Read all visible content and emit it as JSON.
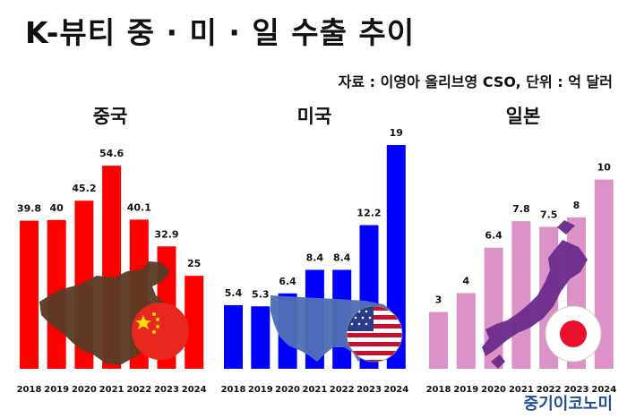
{
  "header": {
    "title": "K-뷰티 중 · 미 · 일 수출 추이",
    "source": "자료 : 이영아 올리브영 CSO, 단위 : 억 달러"
  },
  "brand": "중기이코노미",
  "colors": {
    "china_bar": "#ff0000",
    "usa_bar": "#0000ff",
    "japan_bar": "#dc92c6",
    "china_map": "#5b3b27",
    "usa_map": "#4e6fb5",
    "japan_map": "#6b2d8c"
  },
  "chart_data": [
    {
      "type": "bar",
      "title": "중국",
      "categories": [
        "2018",
        "2019",
        "2020",
        "2021",
        "2022",
        "2023",
        "2024"
      ],
      "values": [
        39.8,
        40,
        45.2,
        54.6,
        40.1,
        32.9,
        25
      ],
      "ylim": [
        0,
        58
      ],
      "color": "#ff0000",
      "icons": [
        "china-map-icon",
        "china-flag-icon"
      ]
    },
    {
      "type": "bar",
      "title": "미국",
      "categories": [
        "2018",
        "2019",
        "2020",
        "2021",
        "2022",
        "2023",
        "2024"
      ],
      "values": [
        5.4,
        5.3,
        6.4,
        8.4,
        8.4,
        12.2,
        19
      ],
      "ylim": [
        0,
        19
      ],
      "color": "#0000ff",
      "icons": [
        "usa-map-icon",
        "usa-flag-icon"
      ]
    },
    {
      "type": "bar",
      "title": "일본",
      "categories": [
        "2018",
        "2019",
        "2020",
        "2021",
        "2022",
        "2023",
        "2024"
      ],
      "values": [
        3,
        4,
        6.4,
        7.8,
        7.5,
        8,
        10
      ],
      "ylim": [
        0,
        10.5
      ],
      "color": "#dc92c6",
      "icons": [
        "japan-map-icon",
        "japan-flag-icon"
      ]
    }
  ]
}
